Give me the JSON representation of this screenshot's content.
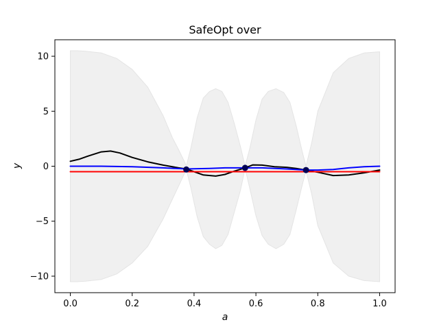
{
  "chart_data": {
    "type": "line",
    "title": "SafeOpt over",
    "xlabel": "a",
    "ylabel": "y",
    "xlim": [
      -0.05,
      1.05
    ],
    "ylim": [
      -11.5,
      11.5
    ],
    "xticks": [
      "0.0",
      "0.2",
      "0.4",
      "0.6",
      "0.8",
      "1.0"
    ],
    "xtick_values": [
      0.0,
      0.2,
      0.4,
      0.6,
      0.8,
      1.0
    ],
    "yticks": [
      "−10",
      "−5",
      "0",
      "5",
      "10"
    ],
    "ytick_values": [
      -10,
      -5,
      0,
      5,
      10
    ],
    "grid": false,
    "legend": "none",
    "colors": {
      "confidence_band": "#f0f0f0",
      "band_edge": "#e4e4e4",
      "true_function": "#000000",
      "posterior_mean": "#0000ff",
      "safety_threshold": "#ff0000",
      "observations": "#000055"
    },
    "confidence_band": {
      "x": [
        0.0,
        0.02,
        0.05,
        0.1,
        0.15,
        0.2,
        0.25,
        0.3,
        0.33,
        0.35,
        0.37,
        0.375,
        0.39,
        0.41,
        0.43,
        0.45,
        0.47,
        0.49,
        0.51,
        0.53,
        0.55,
        0.565,
        0.58,
        0.6,
        0.62,
        0.64,
        0.665,
        0.69,
        0.71,
        0.73,
        0.75,
        0.762,
        0.78,
        0.8,
        0.85,
        0.9,
        0.95,
        1.0
      ],
      "upper": [
        10.5,
        10.5,
        10.45,
        10.3,
        9.8,
        8.8,
        7.2,
        4.6,
        2.6,
        1.5,
        0.35,
        0.0,
        1.7,
        4.4,
        6.2,
        6.8,
        7.05,
        6.8,
        5.8,
        3.9,
        1.8,
        0.0,
        1.6,
        4.2,
        6.1,
        6.8,
        7.05,
        6.7,
        5.8,
        3.7,
        1.3,
        0.0,
        2.1,
        5.0,
        8.5,
        9.8,
        10.3,
        10.4
      ],
      "lower": [
        -10.5,
        -10.5,
        -10.45,
        -10.3,
        -9.8,
        -8.8,
        -7.3,
        -4.8,
        -3.0,
        -1.8,
        -0.6,
        -0.3,
        -2.0,
        -4.6,
        -6.4,
        -7.1,
        -7.5,
        -7.2,
        -6.2,
        -4.2,
        -2.2,
        -0.2,
        -2.0,
        -4.5,
        -6.3,
        -7.1,
        -7.5,
        -7.1,
        -6.2,
        -4.0,
        -1.7,
        -0.4,
        -2.5,
        -5.4,
        -8.8,
        -10.0,
        -10.4,
        -10.5
      ]
    },
    "series": [
      {
        "x": [
          0.0,
          0.03,
          0.06,
          0.1,
          0.13,
          0.16,
          0.2,
          0.25,
          0.3,
          0.35,
          0.375,
          0.4,
          0.43,
          0.47,
          0.5,
          0.53,
          0.565,
          0.59,
          0.62,
          0.66,
          0.7,
          0.73,
          0.762,
          0.8,
          0.85,
          0.9,
          0.95,
          1.0
        ],
        "y": [
          0.45,
          0.65,
          0.95,
          1.3,
          1.38,
          1.2,
          0.8,
          0.4,
          0.1,
          -0.15,
          -0.25,
          -0.5,
          -0.8,
          -0.9,
          -0.75,
          -0.45,
          -0.15,
          0.12,
          0.1,
          -0.05,
          -0.1,
          -0.2,
          -0.35,
          -0.55,
          -0.85,
          -0.8,
          -0.6,
          -0.35
        ]
      },
      {
        "x": [
          0.0,
          0.1,
          0.2,
          0.3,
          0.375,
          0.45,
          0.5,
          0.565,
          0.62,
          0.7,
          0.762,
          0.8,
          0.85,
          0.9,
          0.95,
          1.0
        ],
        "y": [
          0.0,
          0.0,
          -0.05,
          -0.15,
          -0.25,
          -0.2,
          -0.15,
          -0.15,
          -0.15,
          -0.25,
          -0.35,
          -0.35,
          -0.3,
          -0.15,
          -0.05,
          0.0
        ]
      },
      {
        "x": [
          0.0,
          1.0
        ],
        "y": [
          -0.5,
          -0.5
        ]
      }
    ],
    "observations": {
      "x": [
        0.375,
        0.565,
        0.762
      ],
      "y": [
        -0.3,
        -0.15,
        -0.35
      ]
    }
  }
}
